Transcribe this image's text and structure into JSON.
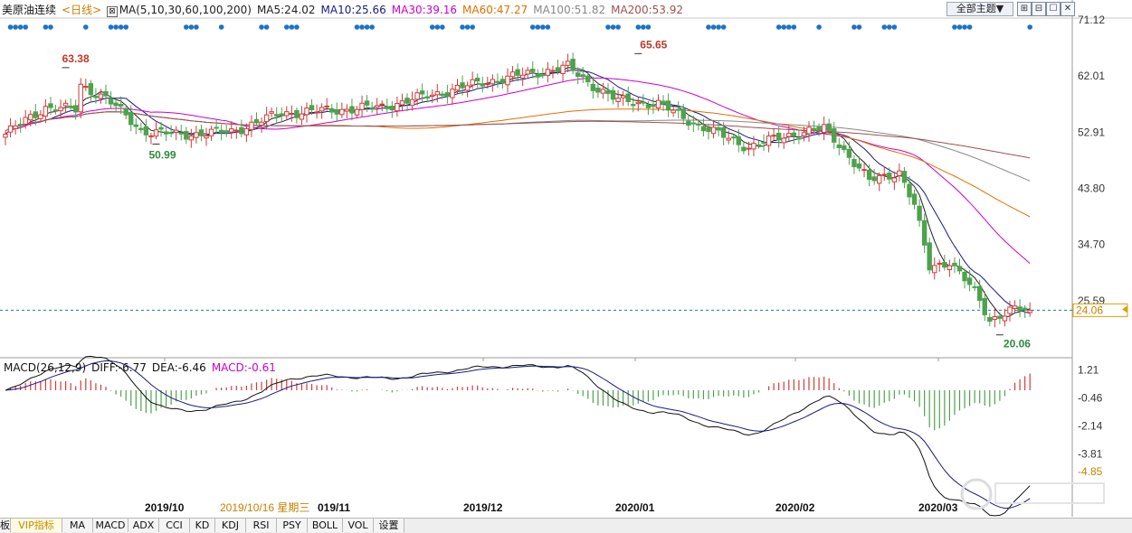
{
  "header": {
    "instrument": "美原油连续",
    "period": "<日线>",
    "ma_params": "MA(5,10,30,60,100,200)",
    "ma_items": [
      {
        "label": "MA5:24.02",
        "color": "#222222"
      },
      {
        "label": "MA10:25.66",
        "color": "#1a1a80"
      },
      {
        "label": "MA30:39.16",
        "color": "#cc00cc"
      },
      {
        "label": "MA60:47.27",
        "color": "#e07000"
      },
      {
        "label": "MA100:51.82",
        "color": "#888888"
      },
      {
        "label": "MA200:53.92",
        "color": "#a05050"
      }
    ],
    "theme_button": "全部主题▼"
  },
  "window_buttons": [
    "⊞",
    "⊟",
    "☐",
    "✕"
  ],
  "macd": {
    "params": "MACD(26,12,9)",
    "diff": "DIFF:-6.77",
    "dea": "DEA:-6.46",
    "macd": "MACD:-0.61"
  },
  "tabs": {
    "left_stub": "板",
    "items": [
      "VIP指标",
      "MA",
      "MACD",
      "ADX",
      "CCI",
      "KD",
      "KDJ",
      "RSI",
      "PSY",
      "BOLL",
      "VOL",
      "设置"
    ],
    "active": "VIP指标"
  },
  "chart_data": [
    {
      "type": "candlestick",
      "title": "美原油连续",
      "y_ticks": [
        "71.12",
        "62.01",
        "52.91",
        "43.80",
        "34.70",
        "25.59"
      ],
      "ylim": [
        16.5,
        71.12
      ],
      "current_price": "24.06",
      "x_labels": [
        "2019/10",
        "2019/10/16 星期三",
        "019/11",
        "2019/12",
        "2020/01",
        "2020/02",
        "2020/03"
      ],
      "annotations": [
        {
          "label": "63.38",
          "kind": "high"
        },
        {
          "label": "50.99",
          "kind": "low"
        },
        {
          "label": "65.65",
          "kind": "high"
        },
        {
          "label": "20.06",
          "kind": "low"
        }
      ],
      "close_anchors": [
        {
          "bar": 0,
          "value": 52.6
        },
        {
          "bar": 8,
          "value": 57.0
        },
        {
          "bar": 14,
          "value": 56.5
        },
        {
          "bar": 15,
          "value": 60.5
        },
        {
          "bar": 20,
          "value": 58.5
        },
        {
          "bar": 27,
          "value": 53.2
        },
        {
          "bar": 34,
          "value": 52.5
        },
        {
          "bar": 45,
          "value": 53.0
        },
        {
          "bar": 55,
          "value": 56.0
        },
        {
          "bar": 65,
          "value": 56.5
        },
        {
          "bar": 75,
          "value": 57.0
        },
        {
          "bar": 85,
          "value": 59.0
        },
        {
          "bar": 95,
          "value": 61.0
        },
        {
          "bar": 105,
          "value": 62.5
        },
        {
          "bar": 112,
          "value": 63.5
        },
        {
          "bar": 116,
          "value": 61.0
        },
        {
          "bar": 122,
          "value": 58.0
        },
        {
          "bar": 130,
          "value": 57.5
        },
        {
          "bar": 138,
          "value": 54.0
        },
        {
          "bar": 148,
          "value": 50.5
        },
        {
          "bar": 156,
          "value": 52.5
        },
        {
          "bar": 163,
          "value": 53.5
        },
        {
          "bar": 166,
          "value": 51.0
        },
        {
          "bar": 172,
          "value": 45.0
        },
        {
          "bar": 178,
          "value": 46.5
        },
        {
          "bar": 181,
          "value": 41.0
        },
        {
          "bar": 184,
          "value": 31.0
        },
        {
          "bar": 188,
          "value": 32.0
        },
        {
          "bar": 193,
          "value": 27.0
        },
        {
          "bar": 196,
          "value": 22.5
        },
        {
          "bar": 200,
          "value": 24.06
        },
        {
          "bar": 204,
          "value": 24.0
        }
      ],
      "series": [
        {
          "name": "MA5",
          "color": "#222222",
          "period": 5
        },
        {
          "name": "MA10",
          "color": "#1a1a80",
          "period": 10
        },
        {
          "name": "MA30",
          "color": "#cc00cc",
          "period": 30
        },
        {
          "name": "MA60",
          "color": "#e07000",
          "period": 60
        },
        {
          "name": "MA100",
          "color": "#888888",
          "period": 100
        },
        {
          "name": "MA200",
          "color": "#a05050",
          "period": 200
        }
      ],
      "colors": {
        "up": "#d23b3b",
        "down": "#4ea24e",
        "dot": "#1e72c8",
        "dashed": "#1e72c8"
      }
    },
    {
      "type": "macd",
      "y_ticks": [
        "1.21",
        "-0.46",
        "-2.14",
        "-3.81",
        "-4.85"
      ],
      "ylim": [
        -6.9,
        1.4
      ],
      "diff": -6.77,
      "dea": -6.46,
      "macd": -0.61
    }
  ]
}
